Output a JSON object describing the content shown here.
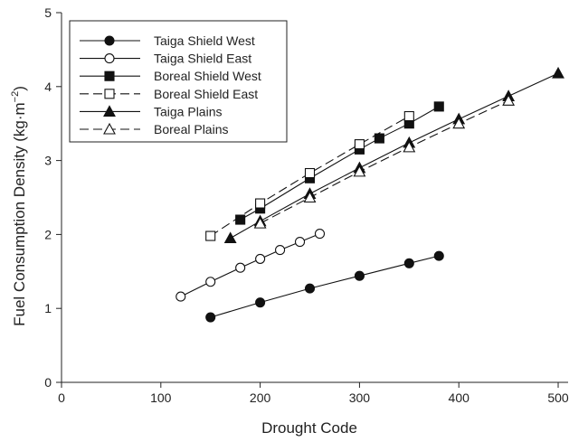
{
  "chart_data": {
    "type": "line",
    "xlabel": "Drought Code",
    "ylabel_main": "Fuel Consumption Density (kg·m",
    "ylabel_sup": "−2",
    "ylabel_close": ")",
    "xlim": [
      0,
      510
    ],
    "ylim": [
      0,
      5
    ],
    "xticks": [
      0,
      100,
      200,
      300,
      400,
      500
    ],
    "yticks": [
      0,
      1,
      2,
      3,
      4,
      5
    ],
    "grid": false,
    "legend_position": "top-left",
    "series": [
      {
        "name": "Taiga Shield West",
        "marker": "circle",
        "filled": true,
        "dashed": false,
        "x": [
          150,
          200,
          250,
          300,
          350,
          380
        ],
        "y": [
          0.88,
          1.08,
          1.27,
          1.44,
          1.61,
          1.71
        ]
      },
      {
        "name": "Taiga Shield East",
        "marker": "circle",
        "filled": false,
        "dashed": false,
        "x": [
          120,
          150,
          180,
          200,
          220,
          240,
          260
        ],
        "y": [
          1.16,
          1.36,
          1.55,
          1.67,
          1.79,
          1.9,
          2.01
        ]
      },
      {
        "name": "Boreal Shield West",
        "marker": "square",
        "filled": true,
        "dashed": false,
        "x": [
          180,
          200,
          250,
          300,
          320,
          350,
          380
        ],
        "y": [
          2.2,
          2.35,
          2.76,
          3.15,
          3.3,
          3.5,
          3.73
        ]
      },
      {
        "name": "Boreal Shield East",
        "marker": "square",
        "filled": false,
        "dashed": true,
        "x": [
          150,
          200,
          250,
          300,
          350
        ],
        "y": [
          1.98,
          2.42,
          2.83,
          3.22,
          3.6
        ]
      },
      {
        "name": "Taiga Plains",
        "marker": "triangle",
        "filled": true,
        "dashed": false,
        "x": [
          170,
          200,
          250,
          300,
          350,
          400,
          450,
          500
        ],
        "y": [
          1.95,
          2.18,
          2.55,
          2.9,
          3.24,
          3.56,
          3.87,
          4.18
        ]
      },
      {
        "name": "Boreal Plains",
        "marker": "triangle",
        "filled": false,
        "dashed": true,
        "x": [
          200,
          250,
          300,
          350,
          400,
          450
        ],
        "y": [
          2.15,
          2.5,
          2.85,
          3.18,
          3.5,
          3.81
        ]
      }
    ]
  }
}
